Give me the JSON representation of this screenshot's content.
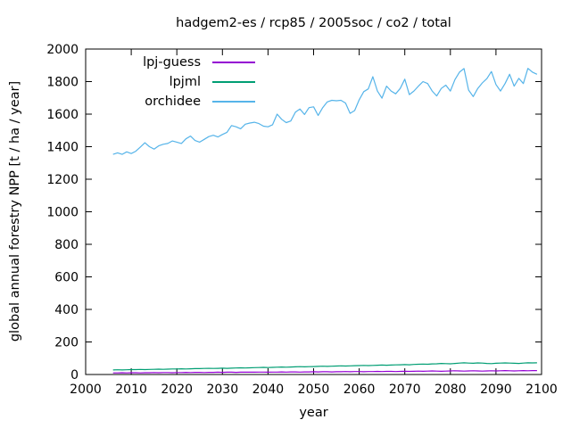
{
  "chart_data": {
    "type": "line",
    "title": "hadgem2-es / rcp85 / 2005soc / co2 / total",
    "xlabel": "year",
    "ylabel": "global annual forestry NPP [t / ha / year]",
    "xlim": [
      2000,
      2100
    ],
    "ylim": [
      0,
      2000
    ],
    "x_ticks": [
      2000,
      2010,
      2020,
      2030,
      2040,
      2050,
      2060,
      2070,
      2080,
      2090,
      2100
    ],
    "y_ticks": [
      0,
      200,
      400,
      600,
      800,
      1000,
      1200,
      1400,
      1600,
      1800,
      2000
    ],
    "grid": false,
    "legend_position": "top-left-inside",
    "x_start": 2006,
    "x_step": 1,
    "series": [
      {
        "name": "lpj-guess",
        "color": "#9400d3",
        "values": [
          10,
          10,
          11,
          10,
          11,
          11,
          10,
          11,
          11,
          12,
          11,
          12,
          12,
          11,
          12,
          12,
          13,
          12,
          13,
          13,
          12,
          13,
          13,
          14,
          13,
          14,
          14,
          13,
          14,
          14,
          15,
          14,
          15,
          15,
          14,
          15,
          15,
          16,
          15,
          16,
          16,
          15,
          16,
          16,
          17,
          16,
          17,
          17,
          16,
          17,
          17,
          18,
          17,
          18,
          18,
          17,
          18,
          18,
          19,
          18,
          19,
          19,
          18,
          19,
          20,
          19,
          20,
          21,
          20,
          21,
          22,
          21,
          20,
          21,
          22,
          23,
          22,
          21,
          22,
          23,
          22,
          21,
          22,
          23,
          22,
          23,
          24,
          23,
          22,
          23,
          24,
          23,
          24,
          24
        ]
      },
      {
        "name": "lpjml",
        "color": "#009e73",
        "values": [
          28,
          29,
          28,
          29,
          30,
          30,
          31,
          30,
          31,
          32,
          33,
          32,
          33,
          34,
          34,
          35,
          34,
          35,
          36,
          36,
          37,
          38,
          37,
          38,
          39,
          38,
          39,
          40,
          41,
          40,
          41,
          42,
          43,
          44,
          43,
          44,
          45,
          46,
          45,
          46,
          47,
          48,
          47,
          48,
          49,
          50,
          51,
          50,
          51,
          52,
          53,
          52,
          53,
          54,
          55,
          56,
          55,
          56,
          57,
          58,
          57,
          58,
          59,
          60,
          61,
          60,
          62,
          63,
          64,
          63,
          65,
          66,
          68,
          67,
          66,
          68,
          70,
          72,
          70,
          69,
          71,
          70,
          68,
          67,
          69,
          70,
          71,
          70,
          69,
          68,
          70,
          72,
          71,
          72
        ]
      },
      {
        "name": "orchidee",
        "color": "#56b4e9",
        "values": [
          1353,
          1362,
          1353,
          1368,
          1358,
          1372,
          1398,
          1424,
          1400,
          1385,
          1405,
          1415,
          1420,
          1435,
          1428,
          1420,
          1448,
          1465,
          1438,
          1428,
          1445,
          1462,
          1470,
          1460,
          1475,
          1488,
          1530,
          1522,
          1510,
          1538,
          1545,
          1550,
          1542,
          1526,
          1522,
          1535,
          1600,
          1568,
          1548,
          1558,
          1612,
          1632,
          1598,
          1640,
          1645,
          1592,
          1640,
          1675,
          1685,
          1682,
          1685,
          1668,
          1605,
          1622,
          1688,
          1738,
          1755,
          1830,
          1742,
          1698,
          1772,
          1742,
          1725,
          1758,
          1815,
          1720,
          1742,
          1772,
          1800,
          1788,
          1742,
          1712,
          1758,
          1778,
          1742,
          1812,
          1858,
          1880,
          1748,
          1708,
          1758,
          1792,
          1818,
          1862,
          1782,
          1742,
          1788,
          1845,
          1772,
          1820,
          1788,
          1881,
          1858,
          1845
        ]
      }
    ]
  }
}
